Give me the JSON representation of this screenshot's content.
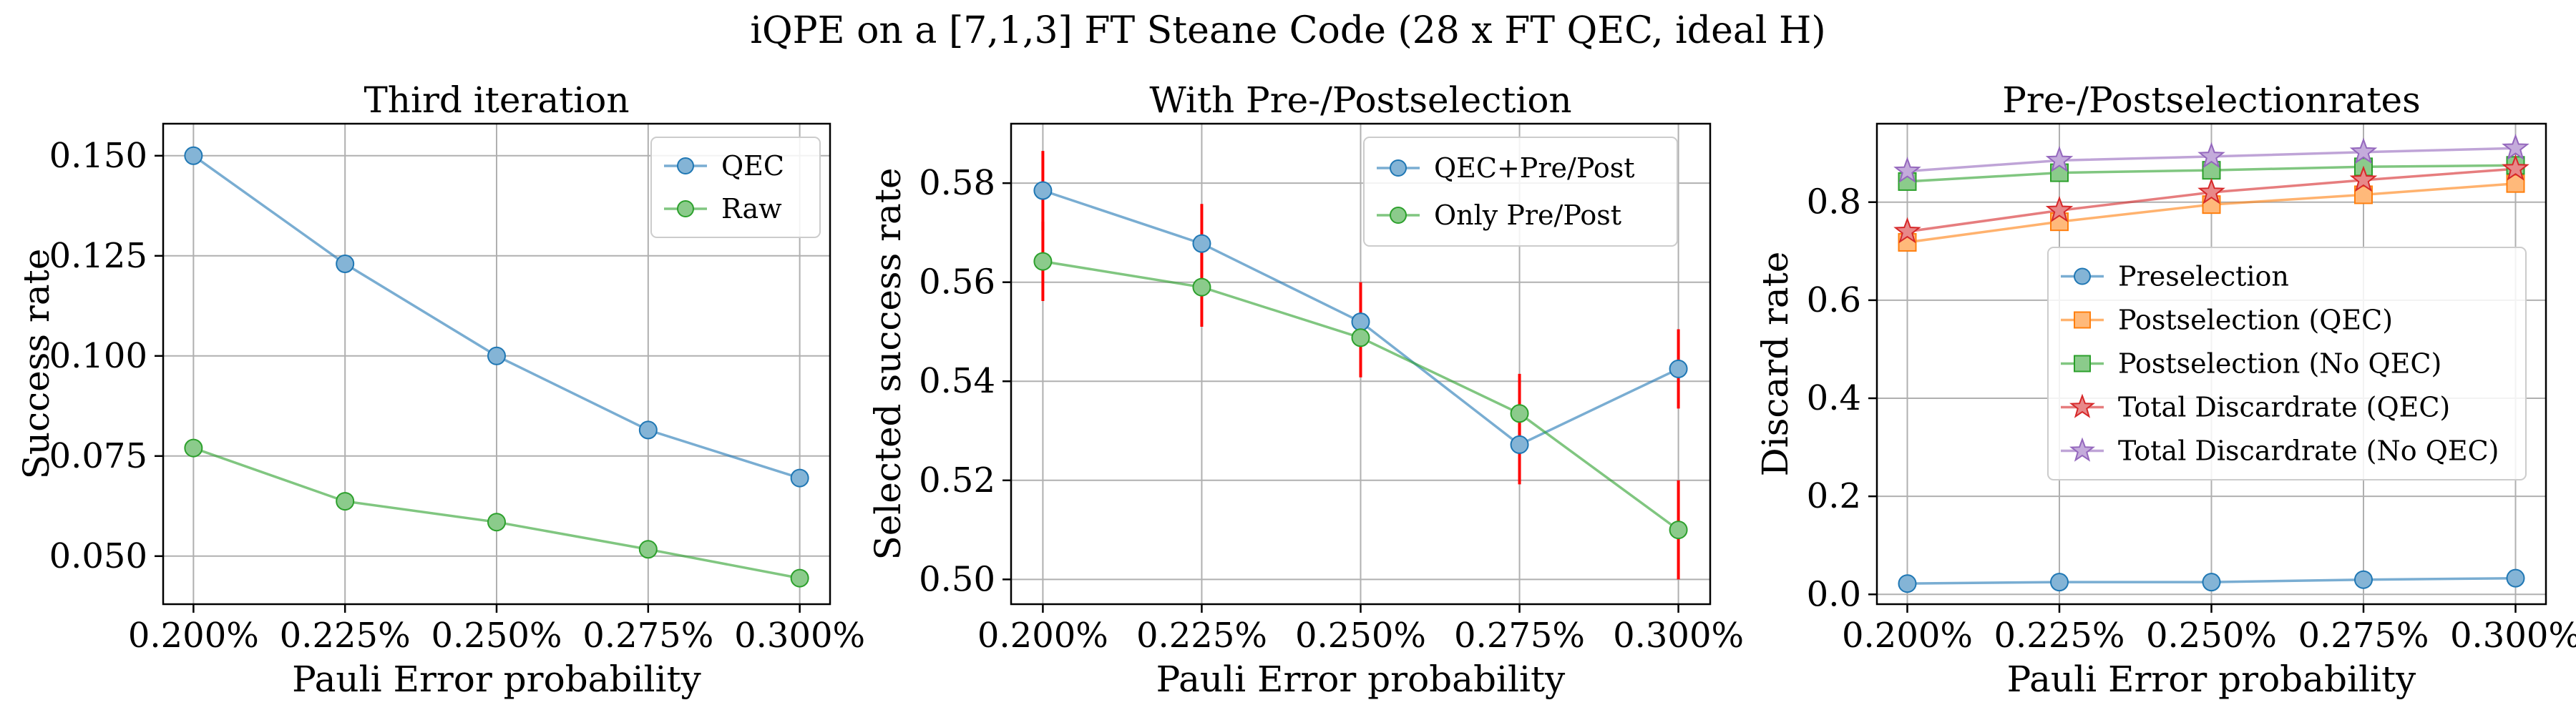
{
  "figure": {
    "suptitle": "iQPE on a [7,1,3] FT Steane Code (28 x FT QEC, ideal H)"
  },
  "chart_data": [
    {
      "type": "line",
      "title": "Third iteration",
      "xlabel": "Pauli Error probability",
      "ylabel": "Success rate",
      "x": [
        0.2,
        0.225,
        0.25,
        0.275,
        0.3
      ],
      "x_tick_labels": [
        "0.200%",
        "0.225%",
        "0.250%",
        "0.275%",
        "0.300%"
      ],
      "xlim": [
        0.195,
        0.305
      ],
      "ylim": [
        0.038,
        0.158
      ],
      "y_ticks": [
        0.05,
        0.075,
        0.1,
        0.125,
        0.15
      ],
      "y_tick_labels": [
        "0.050",
        "0.075",
        "0.100",
        "0.125",
        "0.150"
      ],
      "grid": true,
      "legend_position": "top-right",
      "series": [
        {
          "name": "QEC",
          "values": [
            0.15,
            0.123,
            0.1,
            0.0815,
            0.0695
          ],
          "color": "#1f77b4",
          "marker": "circle"
        },
        {
          "name": "Raw",
          "values": [
            0.077,
            0.0637,
            0.0585,
            0.0517,
            0.0445
          ],
          "color": "#2ca02c",
          "marker": "circle"
        }
      ],
      "errorbars": {
        "color": "#ff0000",
        "series": [
          {
            "low": [
              0.1497,
              0.1227,
              0.0997,
              0.0812,
              0.0692
            ],
            "high": [
              0.1503,
              0.1233,
              0.1003,
              0.0818,
              0.0698
            ]
          },
          {
            "low": [
              0.0767,
              0.0634,
              0.0582,
              0.0514,
              0.0442
            ],
            "high": [
              0.0773,
              0.064,
              0.0588,
              0.052,
              0.0448
            ]
          }
        ]
      }
    },
    {
      "type": "line",
      "title": "With Pre-/Postselection",
      "xlabel": "Pauli Error probability",
      "ylabel": "Selected success rate",
      "x": [
        0.2,
        0.225,
        0.25,
        0.275,
        0.3
      ],
      "x_tick_labels": [
        "0.200%",
        "0.225%",
        "0.250%",
        "0.275%",
        "0.300%"
      ],
      "xlim": [
        0.195,
        0.305
      ],
      "ylim": [
        0.495,
        0.592
      ],
      "y_ticks": [
        0.5,
        0.52,
        0.54,
        0.56,
        0.58
      ],
      "y_tick_labels": [
        "0.50",
        "0.52",
        "0.54",
        "0.56",
        "0.58"
      ],
      "grid": true,
      "legend_position": "top-right",
      "series": [
        {
          "name": "QEC+Pre/Post",
          "values": [
            0.5785,
            0.5678,
            0.552,
            0.5272,
            0.5425
          ],
          "color": "#1f77b4",
          "marker": "circle"
        },
        {
          "name": "Only Pre/Post",
          "values": [
            0.5642,
            0.559,
            0.5488,
            0.5335,
            0.51
          ],
          "color": "#2ca02c",
          "marker": "circle"
        }
      ],
      "errorbars": {
        "color": "#ff0000",
        "series": [
          {
            "low": [
              0.5705,
              0.5598,
              0.544,
              0.5192,
              0.5345
            ],
            "high": [
              0.5865,
              0.5758,
              0.56,
              0.5352,
              0.5505
            ]
          },
          {
            "low": [
              0.5562,
              0.551,
              0.5408,
              0.5255,
              0.5
            ],
            "high": [
              0.5722,
              0.567,
              0.5568,
              0.5415,
              0.52
            ]
          }
        ]
      }
    },
    {
      "type": "line",
      "title": "Pre-/Postselectionrates",
      "xlabel": "Pauli Error probability",
      "ylabel": "Discard rate",
      "x": [
        0.2,
        0.225,
        0.25,
        0.275,
        0.3
      ],
      "x_tick_labels": [
        "0.200%",
        "0.225%",
        "0.250%",
        "0.275%",
        "0.300%"
      ],
      "xlim": [
        0.195,
        0.305
      ],
      "ylim": [
        -0.02,
        0.96
      ],
      "y_ticks": [
        0.0,
        0.2,
        0.4,
        0.6,
        0.8
      ],
      "y_tick_labels": [
        "0.0",
        "0.2",
        "0.4",
        "0.6",
        "0.8"
      ],
      "grid": true,
      "legend_position": "center-right",
      "series": [
        {
          "name": "Preselection",
          "values": [
            0.022,
            0.025,
            0.025,
            0.03,
            0.033
          ],
          "color": "#1f77b4",
          "marker": "circle"
        },
        {
          "name": "Postselection (QEC)",
          "values": [
            0.718,
            0.76,
            0.795,
            0.815,
            0.838
          ],
          "color": "#ff7f0e",
          "marker": "square"
        },
        {
          "name": "Postselection (No QEC)",
          "values": [
            0.842,
            0.86,
            0.865,
            0.872,
            0.875
          ],
          "color": "#2ca02c",
          "marker": "square"
        },
        {
          "name": "Total Discardrate (QEC)",
          "values": [
            0.74,
            0.783,
            0.82,
            0.845,
            0.868
          ],
          "color": "#d62728",
          "marker": "star"
        },
        {
          "name": "Total Discardrate (No QEC)",
          "values": [
            0.863,
            0.885,
            0.893,
            0.902,
            0.91
          ],
          "color": "#9467bd",
          "marker": "star"
        }
      ]
    }
  ]
}
